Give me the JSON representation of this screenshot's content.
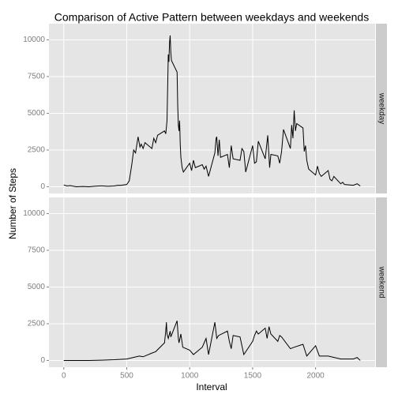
{
  "chart_data": {
    "type": "line",
    "facet": true,
    "title": "Comparison of Active Pattern between weekdays and weekends",
    "x_label": "Interval",
    "y_label": "Number of Steps",
    "xlim": [
      -117.75,
      2472.75
    ],
    "xticks": [
      0,
      500,
      1000,
      1500,
      2000
    ],
    "ylim": [
      -460,
      11100
    ],
    "yticks": [
      0,
      2500,
      5000,
      7500,
      10000
    ],
    "grid": true,
    "series": [
      {
        "name": "weekday",
        "color": "#000000",
        "x": [
          0,
          25,
          50,
          100,
          150,
          200,
          250,
          300,
          350,
          400,
          430,
          450,
          500,
          520,
          540,
          555,
          570,
          590,
          605,
          615,
          630,
          645,
          700,
          715,
          730,
          745,
          800,
          810,
          820,
          830,
          835,
          840,
          845,
          850,
          855,
          900,
          905,
          910,
          915,
          920,
          925,
          930,
          940,
          950,
          1000,
          1015,
          1030,
          1045,
          1100,
          1115,
          1130,
          1150,
          1200,
          1210,
          1215,
          1225,
          1235,
          1245,
          1300,
          1315,
          1330,
          1345,
          1400,
          1415,
          1430,
          1445,
          1500,
          1515,
          1530,
          1545,
          1600,
          1610,
          1620,
          1635,
          1645,
          1700,
          1715,
          1730,
          1745,
          1800,
          1810,
          1820,
          1830,
          1840,
          1850,
          1900,
          1910,
          1920,
          1930,
          1945,
          2000,
          2015,
          2030,
          2045,
          2100,
          2115,
          2130,
          2145,
          2200,
          2215,
          2230,
          2300,
          2330,
          2355
        ],
        "values": [
          120,
          50,
          80,
          0,
          20,
          0,
          40,
          60,
          30,
          50,
          100,
          90,
          150,
          400,
          1500,
          2500,
          2300,
          3400,
          2700,
          2900,
          2600,
          3000,
          2600,
          3300,
          3000,
          3500,
          3800,
          3600,
          4500,
          9000,
          8500,
          9800,
          10300,
          9200,
          8600,
          7800,
          5500,
          4200,
          3800,
          4500,
          2900,
          2000,
          1300,
          1000,
          1600,
          1100,
          1800,
          1300,
          1500,
          1200,
          1400,
          700,
          2300,
          3300,
          3400,
          2100,
          3200,
          2000,
          2200,
          1300,
          2800,
          1900,
          1800,
          2600,
          2400,
          1000,
          2800,
          1600,
          1700,
          3100,
          1900,
          2700,
          3500,
          1300,
          2200,
          2100,
          1600,
          2400,
          3900,
          2600,
          4200,
          3300,
          5200,
          3800,
          4300,
          4000,
          2400,
          2800,
          1800,
          1200,
          800,
          1400,
          900,
          700,
          1100,
          500,
          400,
          700,
          200,
          300,
          150,
          100,
          200,
          50
        ]
      },
      {
        "name": "weekend",
        "color": "#000000",
        "x": [
          0,
          100,
          200,
          300,
          400,
          500,
          550,
          600,
          630,
          700,
          730,
          800,
          810,
          815,
          820,
          830,
          845,
          850,
          900,
          910,
          915,
          930,
          945,
          1000,
          1030,
          1100,
          1115,
          1130,
          1150,
          1200,
          1215,
          1230,
          1300,
          1315,
          1330,
          1345,
          1400,
          1415,
          1430,
          1500,
          1515,
          1530,
          1545,
          1600,
          1615,
          1630,
          1645,
          1700,
          1715,
          1730,
          1800,
          1830,
          1900,
          1930,
          2000,
          2030,
          2100,
          2200,
          2300,
          2330,
          2355
        ],
        "values": [
          0,
          0,
          0,
          20,
          50,
          100,
          200,
          300,
          250,
          500,
          600,
          1200,
          2000,
          2600,
          1800,
          1500,
          2000,
          1600,
          2700,
          1500,
          1200,
          1800,
          900,
          700,
          400,
          900,
          1200,
          1500,
          400,
          2600,
          1500,
          1700,
          2000,
          1300,
          800,
          1700,
          1600,
          1000,
          400,
          1300,
          1700,
          2000,
          1800,
          2200,
          1500,
          2300,
          1800,
          1300,
          1700,
          1600,
          800,
          900,
          1100,
          300,
          1000,
          300,
          300,
          100,
          100,
          200,
          0
        ]
      }
    ]
  }
}
